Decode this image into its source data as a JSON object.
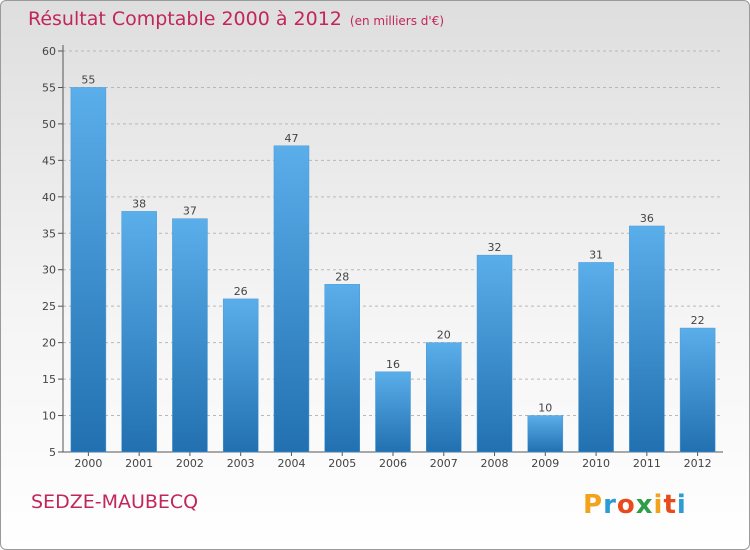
{
  "header": {
    "title": "Résultat Comptable 2000 à 2012",
    "subtitle": "(en milliers d'€)"
  },
  "footer": {
    "commune": "SEDZE-MAUBECQ",
    "logo_letters": [
      "P",
      "r",
      "o",
      "x",
      "i",
      "t",
      "i"
    ],
    "logo_colors": [
      "#f2a31b",
      "#2c9bd6",
      "#e84a1b",
      "#2e9e48",
      "#f2a31b",
      "#e84a1b",
      "#2c9bd6"
    ]
  },
  "chart_data": {
    "type": "bar",
    "categories": [
      "2000",
      "2001",
      "2002",
      "2003",
      "2004",
      "2005",
      "2006",
      "2007",
      "2008",
      "2009",
      "2010",
      "2011",
      "2012"
    ],
    "values": [
      55,
      38,
      37,
      26,
      47,
      28,
      16,
      20,
      32,
      10,
      31,
      36,
      22
    ],
    "ylim": [
      5,
      60
    ],
    "yticks": [
      5,
      10,
      15,
      20,
      25,
      30,
      35,
      40,
      45,
      50,
      55,
      60
    ],
    "grid": "horizontal dashed",
    "bar_color_top": "#5aaeea",
    "bar_color_bottom": "#2270b0",
    "data_labels": true
  }
}
